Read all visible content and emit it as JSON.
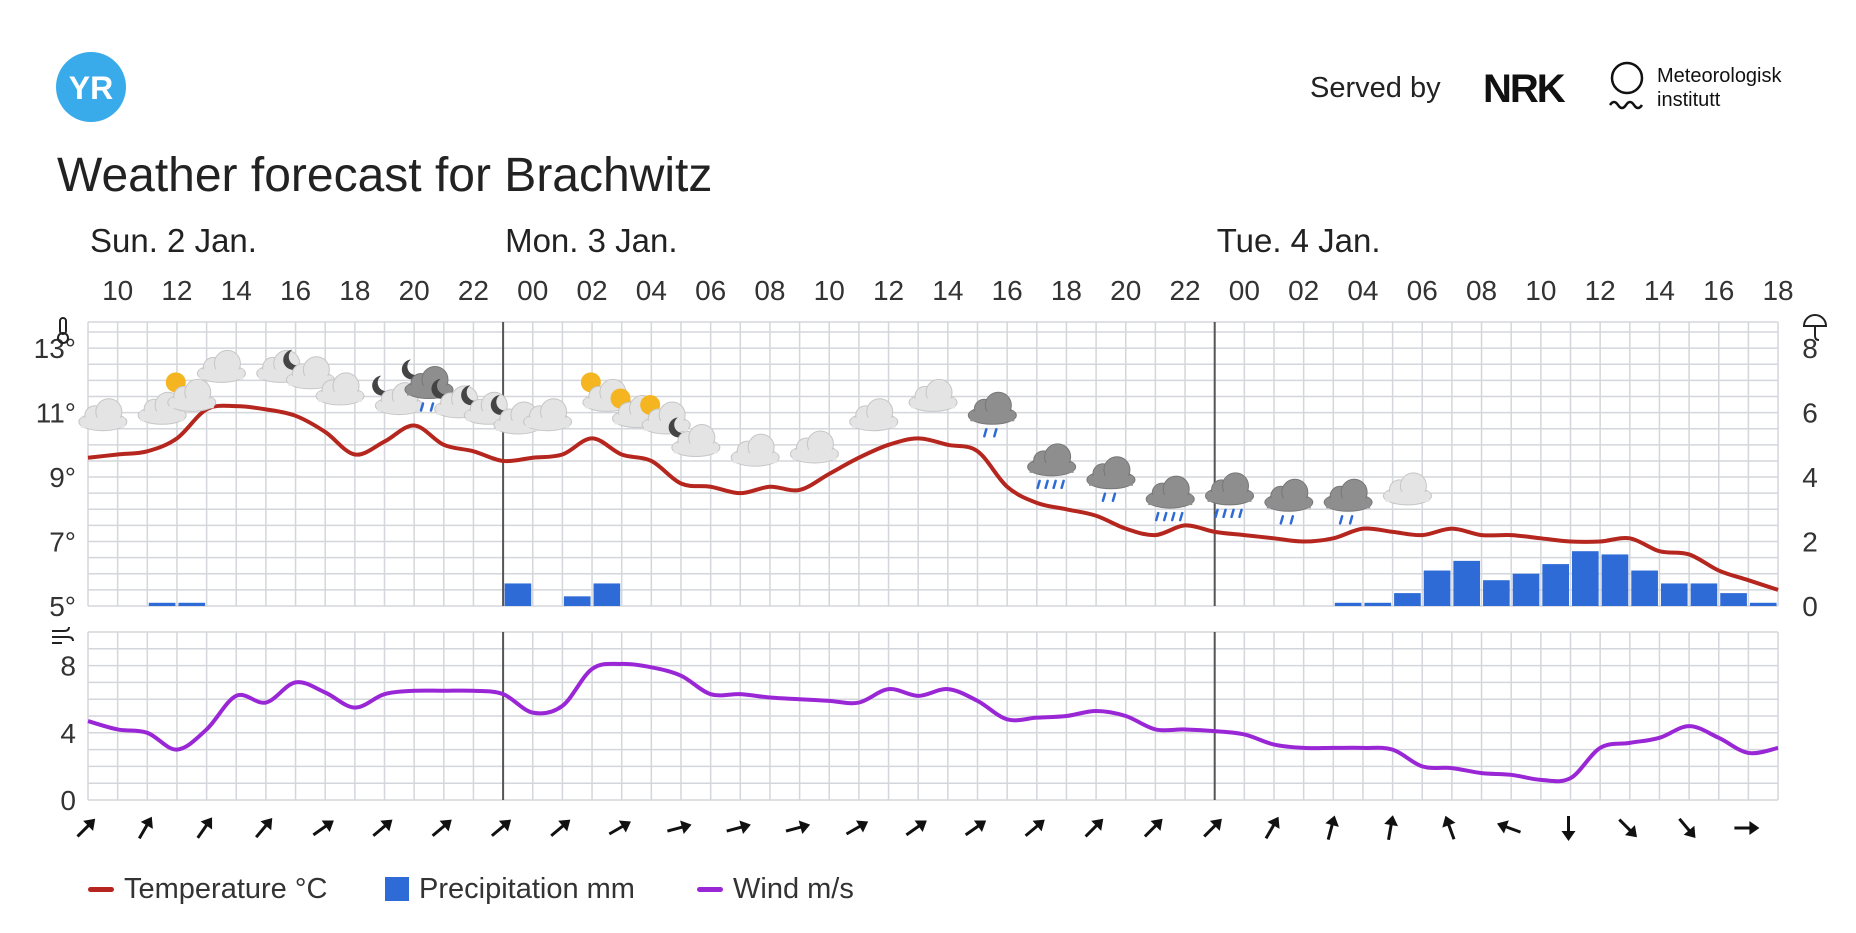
{
  "header": {
    "logo_text": "YR",
    "served_by": "Served by",
    "nrk_logo_text": "NRK",
    "met_line1": "Meteorologisk",
    "met_line2": "institutt",
    "title": "Weather forecast for Brachwitz"
  },
  "colors": {
    "temperature": "#b5261e",
    "precipitation": "#2f6bd6",
    "wind": "#9a27d6",
    "grid": "#d3d6db",
    "logo": "#3aabea"
  },
  "legend": {
    "temperature": "Temperature °C",
    "precipitation": "Precipitation mm",
    "wind": "Wind m/s"
  },
  "chart_data": {
    "type": "line",
    "days": [
      {
        "label": "Sun. 2 Jan.",
        "start_hour_index": 0
      },
      {
        "label": "Mon. 3 Jan.",
        "start_hour_index": 14
      },
      {
        "label": "Tue. 4 Jan.",
        "start_hour_index": 38
      }
    ],
    "x_tick_labels": [
      "10",
      "12",
      "14",
      "16",
      "18",
      "20",
      "22",
      "00",
      "02",
      "04",
      "06",
      "08",
      "10",
      "12",
      "14",
      "16",
      "18",
      "20",
      "22",
      "00",
      "02",
      "04",
      "06",
      "08",
      "10",
      "12",
      "14",
      "16",
      "18"
    ],
    "temperature_axis": {
      "ticks": [
        "5°",
        "7°",
        "9°",
        "11°",
        "13°"
      ],
      "range": [
        5,
        13.5
      ]
    },
    "precipitation_axis": {
      "ticks": [
        "0",
        "2",
        "4",
        "6",
        "8"
      ],
      "range": [
        0,
        8.5
      ]
    },
    "wind_axis": {
      "ticks": [
        "0",
        "4",
        "8"
      ],
      "range": [
        0,
        10
      ]
    },
    "series": [
      {
        "name": "Temperature °C",
        "values": [
          9.6,
          9.7,
          9.8,
          10.2,
          11.1,
          11.2,
          11.1,
          10.9,
          10.4,
          9.7,
          10.1,
          10.6,
          10.0,
          9.8,
          9.5,
          9.6,
          9.7,
          10.2,
          9.7,
          9.5,
          8.8,
          8.7,
          8.5,
          8.7,
          8.6,
          9.1,
          9.6,
          10.0,
          10.2,
          10.0,
          9.8,
          8.7,
          8.2,
          8.0,
          7.8,
          7.4,
          7.2,
          7.5,
          7.3,
          7.2,
          7.1,
          7.0,
          7.1,
          7.4,
          7.3,
          7.2,
          7.4,
          7.2,
          7.2,
          7.1,
          7.0,
          7.0,
          7.1,
          6.7,
          6.6,
          6.1,
          5.8,
          5.5
        ]
      },
      {
        "name": "Precipitation mm",
        "values": [
          0,
          0,
          0.1,
          0.1,
          0,
          0,
          0,
          0,
          0,
          0,
          0,
          0,
          0,
          0,
          0.7,
          0,
          0.3,
          0.7,
          0,
          0,
          0,
          0,
          0,
          0,
          0,
          0,
          0,
          0,
          0,
          0,
          0,
          0,
          0,
          0,
          0,
          0,
          0,
          0,
          0,
          0,
          0,
          0,
          0.1,
          0.1,
          0.4,
          1.1,
          1.4,
          0.8,
          1.0,
          1.3,
          1.7,
          1.6,
          1.1,
          0.7,
          0.7,
          0.4,
          0.1,
          0
        ]
      },
      {
        "name": "Wind m/s",
        "values": [
          4.7,
          4.2,
          4.0,
          3.0,
          4.2,
          6.2,
          5.8,
          7.0,
          6.4,
          5.5,
          6.3,
          6.5,
          6.5,
          6.5,
          6.3,
          5.2,
          5.6,
          7.8,
          8.1,
          7.9,
          7.4,
          6.3,
          6.3,
          6.1,
          6.0,
          5.9,
          5.8,
          6.6,
          6.2,
          6.6,
          5.9,
          4.8,
          4.9,
          5.0,
          5.3,
          5.0,
          4.2,
          4.2,
          4.1,
          3.9,
          3.3,
          3.1,
          3.1,
          3.1,
          3.0,
          2.0,
          1.9,
          1.6,
          1.5,
          1.2,
          1.3,
          3.1,
          3.4,
          3.7,
          4.4,
          3.7,
          2.8,
          3.1
        ]
      }
    ],
    "weather_symbols": [
      "cloudy",
      "",
      "cloudy",
      "fair-day",
      "cloudy",
      "",
      "cloudy",
      "fair-night",
      "cloudy",
      "",
      "fair-night",
      "rain-night",
      "fair-night",
      "fair-night",
      "fair-night",
      "cloudy",
      "",
      "fair-day",
      "fair-day",
      "fair-day",
      "fair-night",
      "",
      "cloudy",
      "",
      "cloudy",
      "",
      "cloudy",
      "",
      "cloudy",
      "",
      "rain",
      "",
      "heavy-rain",
      "",
      "rain",
      "",
      "heavy-rain",
      "",
      "heavy-rain",
      "",
      "rain",
      "",
      "rain",
      "",
      "cloudy"
    ],
    "wind_directions_deg": [
      45,
      30,
      35,
      40,
      55,
      50,
      50,
      50,
      50,
      60,
      75,
      75,
      75,
      60,
      55,
      55,
      50,
      45,
      45,
      45,
      30,
      15,
      10,
      -20,
      -70,
      180,
      135,
      140,
      90
    ],
    "legend_position": "bottom-left"
  }
}
